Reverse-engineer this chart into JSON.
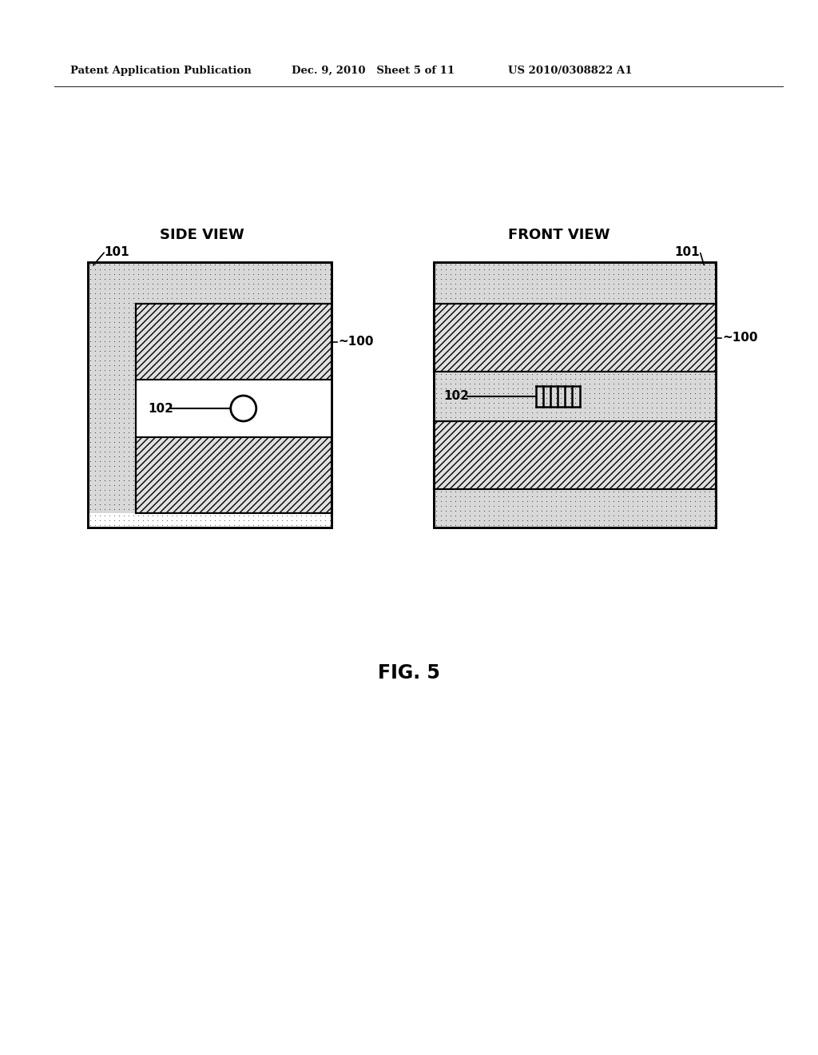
{
  "header_left": "Patent Application Publication",
  "header_mid": "Dec. 9, 2010   Sheet 5 of 11",
  "header_right": "US 2010/0308822 A1",
  "fig_caption": "FIG. 5",
  "label_side_view": "SIDE VIEW",
  "label_front_view": "FRONT VIEW",
  "label_101_side": "101",
  "label_100_side": "~100",
  "label_102_side": "102",
  "label_101_front": "101",
  "label_100_front": "~100",
  "label_102_front": "102",
  "bg_color": "#ffffff",
  "stipple_bg": "#d8d8d8",
  "hatch_bg": "#e4e4e4",
  "coil_region_bg": "#d8d8d8"
}
